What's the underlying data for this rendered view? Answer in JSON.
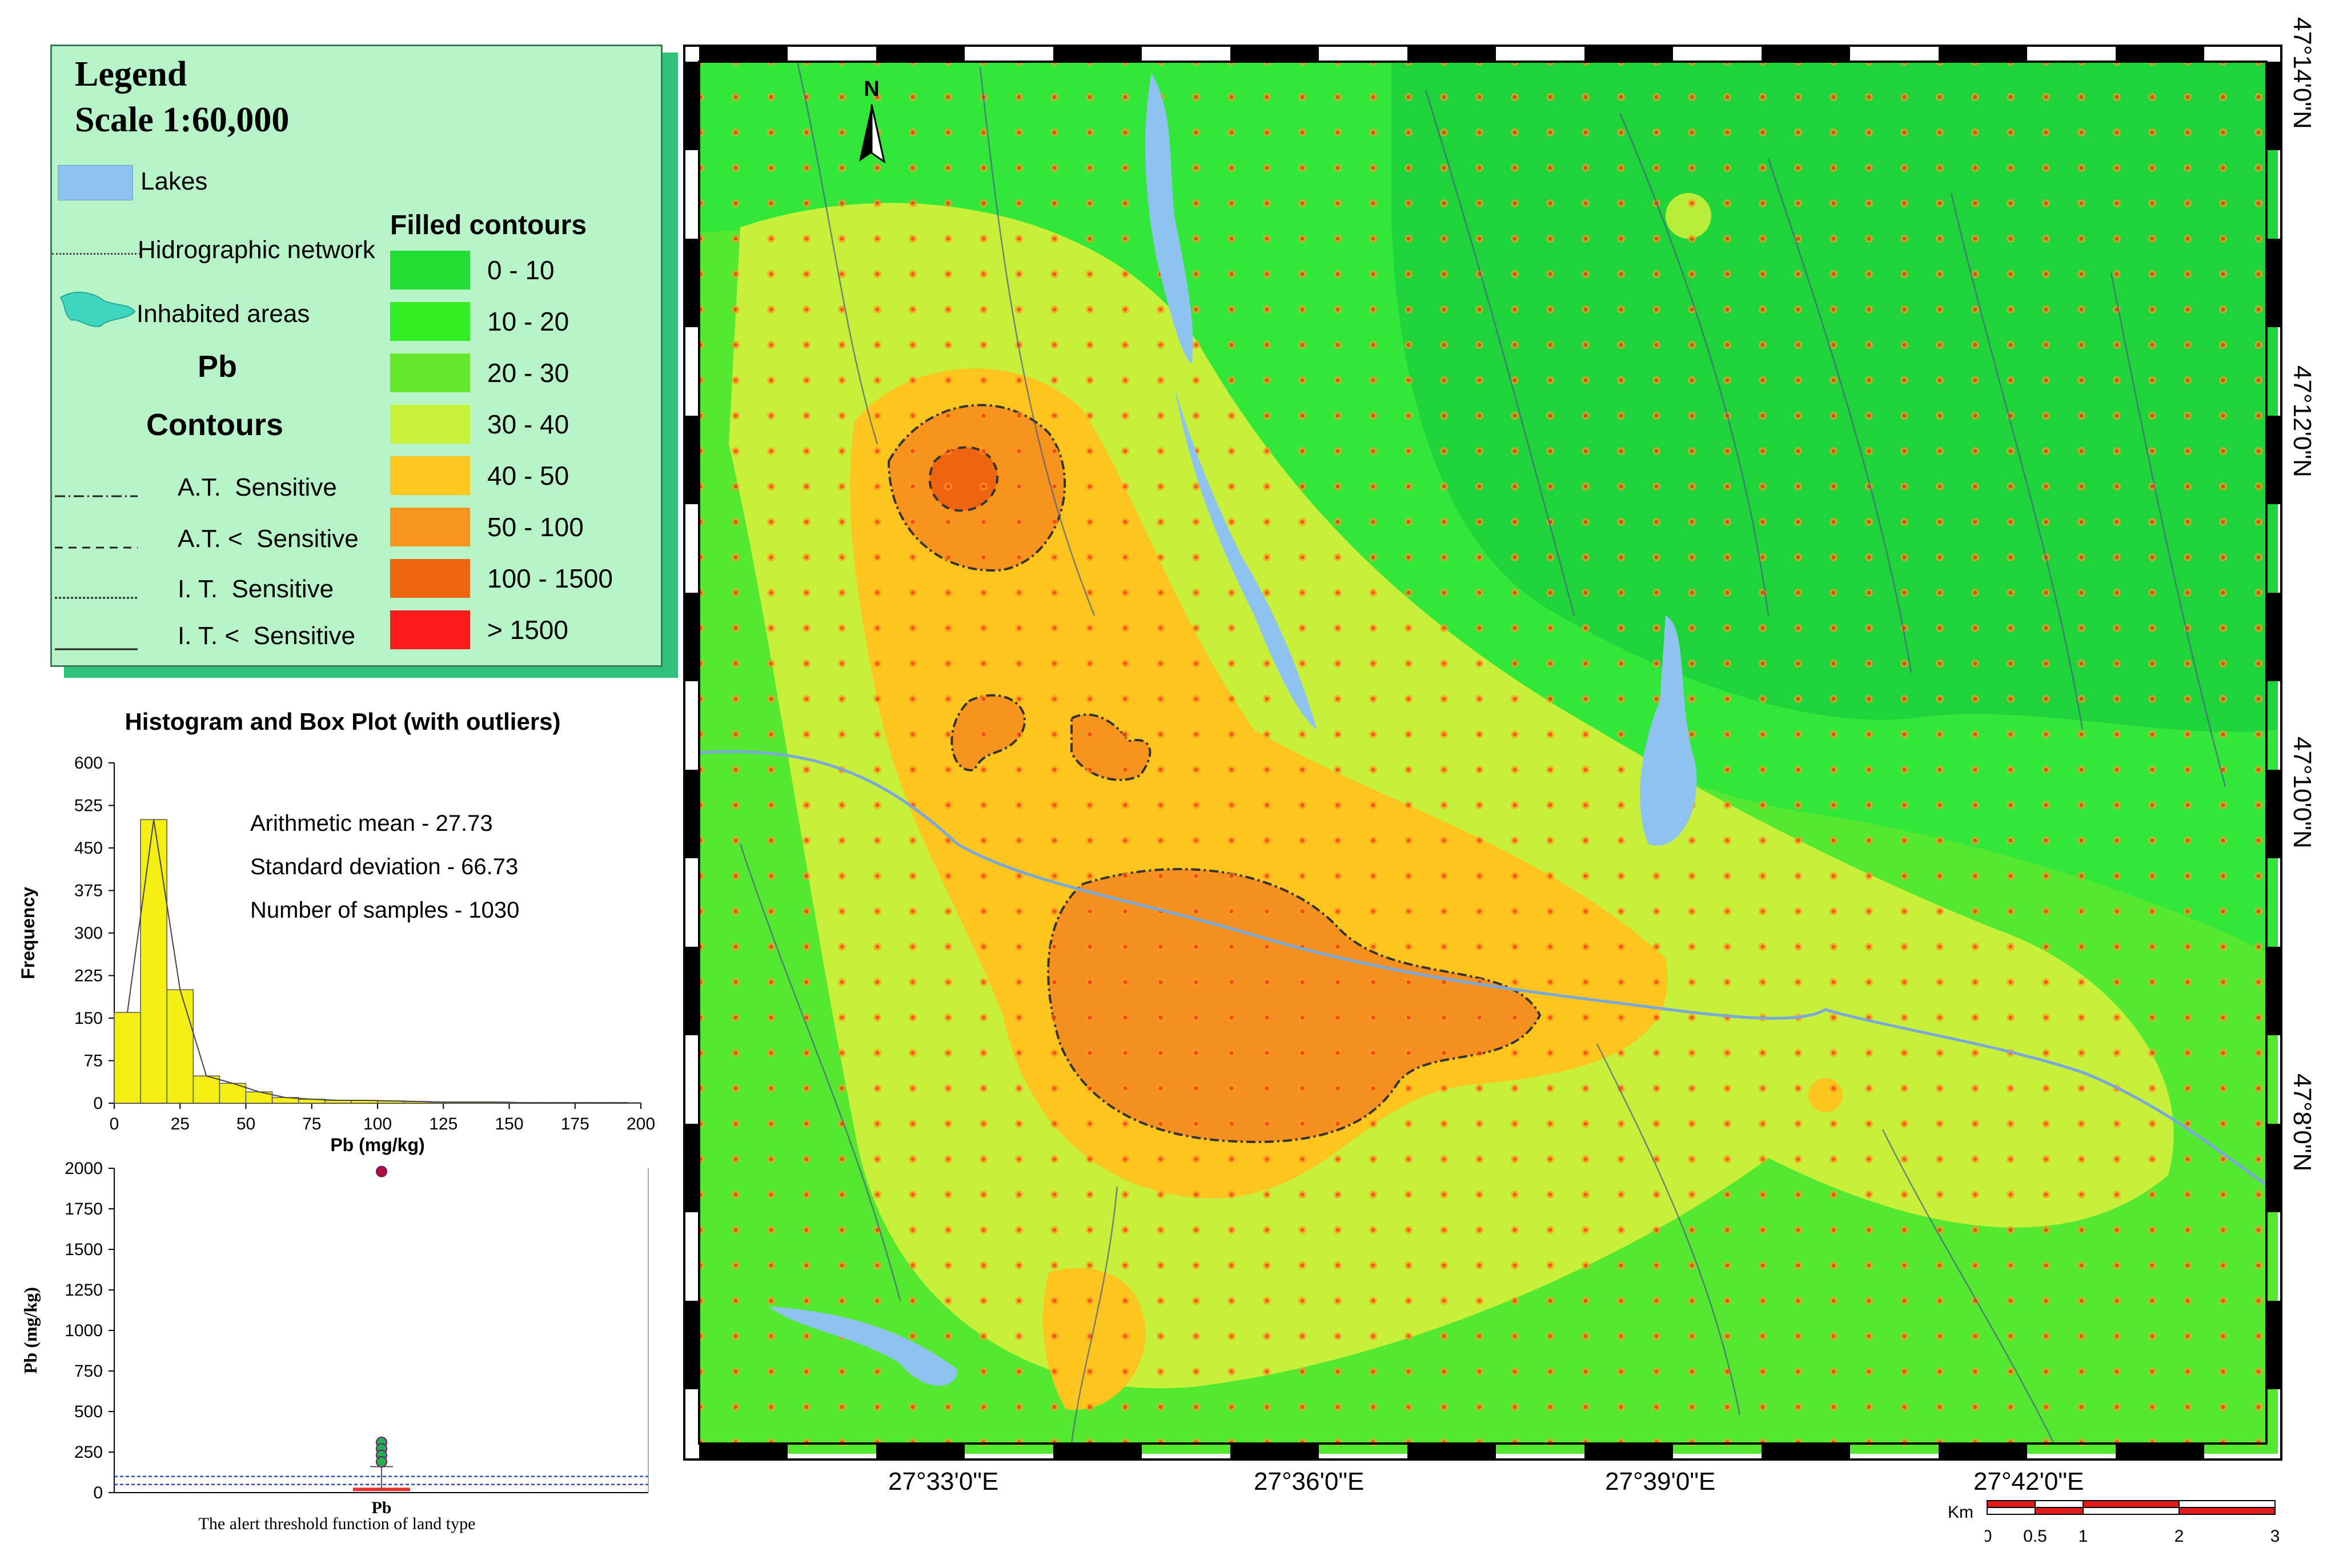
{
  "legend": {
    "title": "Legend",
    "scale": "Scale 1:60,000",
    "lakes": "Lakes",
    "hydro": "Hidrographic network",
    "inhabited": "Inhabited areas",
    "element": "Pb",
    "contours": "Contours",
    "contour_lines": [
      {
        "prefix": "A.T.",
        "suffix": "Sensitive"
      },
      {
        "prefix": "A.T. <",
        "suffix": "Sensitive"
      },
      {
        "prefix": "I. T.",
        "suffix": "Sensitive"
      },
      {
        "prefix": "I. T. <",
        "suffix": "Sensitive"
      }
    ],
    "filled_title": "Filled contours",
    "filled": [
      {
        "label": "0 - 10",
        "color": "#22dd33"
      },
      {
        "label": "10 - 20",
        "color": "#33ee22"
      },
      {
        "label": "20 - 30",
        "color": "#66e62a"
      },
      {
        "label": "30 - 40",
        "color": "#c8f23a"
      },
      {
        "label": "40 - 50",
        "color": "#ffc820"
      },
      {
        "label": "50 - 100",
        "color": "#f7951e"
      },
      {
        "label": "100 - 1500",
        "color": "#f0650f"
      },
      {
        "label": "> 1500",
        "color": "#ff1a1a"
      }
    ]
  },
  "histogram": {
    "title": "Histogram and Box Plot (with outliers)",
    "stats": [
      "Arithmetic mean - 27.73",
      "Standard deviation - 66.73",
      "Number of samples - 1030"
    ],
    "ylabel": "Frequency",
    "xlabel": "Pb (mg/kg)",
    "yticks": [
      "600",
      "525",
      "450",
      "375",
      "300",
      "225",
      "150",
      "75",
      "0"
    ],
    "xticks": [
      "0",
      "25",
      "50",
      "75",
      "100",
      "125",
      "150",
      "175",
      "200"
    ]
  },
  "boxplot": {
    "ylabel": "Pb (mg/kg)",
    "yticks": [
      "2000",
      "1750",
      "1500",
      "1250",
      "1000",
      "750",
      "500",
      "250",
      "0"
    ],
    "category": "Pb",
    "caption": "The alert threshold function of land type"
  },
  "chart_data": [
    {
      "type": "bar",
      "title": "Histogram and Box Plot (with outliers)",
      "xlabel": "Pb (mg/kg)",
      "ylabel": "Frequency",
      "xlim": [
        0,
        200
      ],
      "ylim": [
        0,
        600
      ],
      "bin_width": 10,
      "bin_starts": [
        0,
        10,
        20,
        30,
        40,
        50,
        60,
        70,
        80,
        90,
        100,
        110,
        120,
        130,
        140,
        150,
        160,
        170,
        180,
        190
      ],
      "values": [
        160,
        500,
        200,
        48,
        35,
        20,
        10,
        7,
        5,
        5,
        4,
        3,
        2,
        2,
        2,
        1,
        1,
        1,
        1,
        1
      ]
    },
    {
      "type": "scatter",
      "xlabel": "Pb",
      "ylabel": "Pb (mg/kg)",
      "ylim": [
        0,
        2000
      ],
      "outliers_y": [
        1980,
        310,
        270,
        230,
        190
      ],
      "thresholds": [
        50,
        100
      ]
    }
  ],
  "map": {
    "north": "N",
    "x_labels": [
      "27°33'0\"E",
      "27°36'0\"E",
      "27°39'0\"E",
      "27°42'0\"E"
    ],
    "y_labels": [
      "47°14'0\"N",
      "47°12'0\"N",
      "47°10'0\"N",
      "47°8'0\"N"
    ],
    "scale_unit": "Km",
    "scale_ticks": [
      "0",
      "0.5",
      "1",
      "2",
      "3"
    ]
  }
}
